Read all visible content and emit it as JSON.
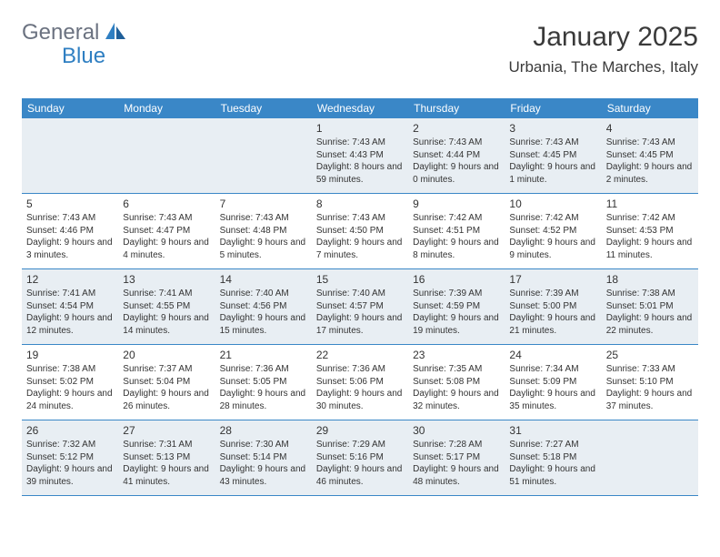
{
  "brand": {
    "name_part1": "General",
    "name_part2": "Blue",
    "text_color": "#6b7280",
    "accent_color": "#2f7fc2"
  },
  "header": {
    "title": "January 2025",
    "location": "Urbania, The Marches, Italy"
  },
  "calendar": {
    "header_bg": "#3a87c7",
    "header_fg": "#ffffff",
    "shade_bg": "#e8eef3",
    "border_color": "#3a87c7",
    "font_size_day": 12,
    "font_size_detail": 10,
    "day_names": [
      "Sunday",
      "Monday",
      "Tuesday",
      "Wednesday",
      "Thursday",
      "Friday",
      "Saturday"
    ],
    "weeks": [
      [
        {
          "day": "",
          "sunrise": "",
          "sunset": "",
          "daylight": ""
        },
        {
          "day": "",
          "sunrise": "",
          "sunset": "",
          "daylight": ""
        },
        {
          "day": "",
          "sunrise": "",
          "sunset": "",
          "daylight": ""
        },
        {
          "day": "1",
          "sunrise": "Sunrise: 7:43 AM",
          "sunset": "Sunset: 4:43 PM",
          "daylight": "Daylight: 8 hours and 59 minutes."
        },
        {
          "day": "2",
          "sunrise": "Sunrise: 7:43 AM",
          "sunset": "Sunset: 4:44 PM",
          "daylight": "Daylight: 9 hours and 0 minutes."
        },
        {
          "day": "3",
          "sunrise": "Sunrise: 7:43 AM",
          "sunset": "Sunset: 4:45 PM",
          "daylight": "Daylight: 9 hours and 1 minute."
        },
        {
          "day": "4",
          "sunrise": "Sunrise: 7:43 AM",
          "sunset": "Sunset: 4:45 PM",
          "daylight": "Daylight: 9 hours and 2 minutes."
        }
      ],
      [
        {
          "day": "5",
          "sunrise": "Sunrise: 7:43 AM",
          "sunset": "Sunset: 4:46 PM",
          "daylight": "Daylight: 9 hours and 3 minutes."
        },
        {
          "day": "6",
          "sunrise": "Sunrise: 7:43 AM",
          "sunset": "Sunset: 4:47 PM",
          "daylight": "Daylight: 9 hours and 4 minutes."
        },
        {
          "day": "7",
          "sunrise": "Sunrise: 7:43 AM",
          "sunset": "Sunset: 4:48 PM",
          "daylight": "Daylight: 9 hours and 5 minutes."
        },
        {
          "day": "8",
          "sunrise": "Sunrise: 7:43 AM",
          "sunset": "Sunset: 4:50 PM",
          "daylight": "Daylight: 9 hours and 7 minutes."
        },
        {
          "day": "9",
          "sunrise": "Sunrise: 7:42 AM",
          "sunset": "Sunset: 4:51 PM",
          "daylight": "Daylight: 9 hours and 8 minutes."
        },
        {
          "day": "10",
          "sunrise": "Sunrise: 7:42 AM",
          "sunset": "Sunset: 4:52 PM",
          "daylight": "Daylight: 9 hours and 9 minutes."
        },
        {
          "day": "11",
          "sunrise": "Sunrise: 7:42 AM",
          "sunset": "Sunset: 4:53 PM",
          "daylight": "Daylight: 9 hours and 11 minutes."
        }
      ],
      [
        {
          "day": "12",
          "sunrise": "Sunrise: 7:41 AM",
          "sunset": "Sunset: 4:54 PM",
          "daylight": "Daylight: 9 hours and 12 minutes."
        },
        {
          "day": "13",
          "sunrise": "Sunrise: 7:41 AM",
          "sunset": "Sunset: 4:55 PM",
          "daylight": "Daylight: 9 hours and 14 minutes."
        },
        {
          "day": "14",
          "sunrise": "Sunrise: 7:40 AM",
          "sunset": "Sunset: 4:56 PM",
          "daylight": "Daylight: 9 hours and 15 minutes."
        },
        {
          "day": "15",
          "sunrise": "Sunrise: 7:40 AM",
          "sunset": "Sunset: 4:57 PM",
          "daylight": "Daylight: 9 hours and 17 minutes."
        },
        {
          "day": "16",
          "sunrise": "Sunrise: 7:39 AM",
          "sunset": "Sunset: 4:59 PM",
          "daylight": "Daylight: 9 hours and 19 minutes."
        },
        {
          "day": "17",
          "sunrise": "Sunrise: 7:39 AM",
          "sunset": "Sunset: 5:00 PM",
          "daylight": "Daylight: 9 hours and 21 minutes."
        },
        {
          "day": "18",
          "sunrise": "Sunrise: 7:38 AM",
          "sunset": "Sunset: 5:01 PM",
          "daylight": "Daylight: 9 hours and 22 minutes."
        }
      ],
      [
        {
          "day": "19",
          "sunrise": "Sunrise: 7:38 AM",
          "sunset": "Sunset: 5:02 PM",
          "daylight": "Daylight: 9 hours and 24 minutes."
        },
        {
          "day": "20",
          "sunrise": "Sunrise: 7:37 AM",
          "sunset": "Sunset: 5:04 PM",
          "daylight": "Daylight: 9 hours and 26 minutes."
        },
        {
          "day": "21",
          "sunrise": "Sunrise: 7:36 AM",
          "sunset": "Sunset: 5:05 PM",
          "daylight": "Daylight: 9 hours and 28 minutes."
        },
        {
          "day": "22",
          "sunrise": "Sunrise: 7:36 AM",
          "sunset": "Sunset: 5:06 PM",
          "daylight": "Daylight: 9 hours and 30 minutes."
        },
        {
          "day": "23",
          "sunrise": "Sunrise: 7:35 AM",
          "sunset": "Sunset: 5:08 PM",
          "daylight": "Daylight: 9 hours and 32 minutes."
        },
        {
          "day": "24",
          "sunrise": "Sunrise: 7:34 AM",
          "sunset": "Sunset: 5:09 PM",
          "daylight": "Daylight: 9 hours and 35 minutes."
        },
        {
          "day": "25",
          "sunrise": "Sunrise: 7:33 AM",
          "sunset": "Sunset: 5:10 PM",
          "daylight": "Daylight: 9 hours and 37 minutes."
        }
      ],
      [
        {
          "day": "26",
          "sunrise": "Sunrise: 7:32 AM",
          "sunset": "Sunset: 5:12 PM",
          "daylight": "Daylight: 9 hours and 39 minutes."
        },
        {
          "day": "27",
          "sunrise": "Sunrise: 7:31 AM",
          "sunset": "Sunset: 5:13 PM",
          "daylight": "Daylight: 9 hours and 41 minutes."
        },
        {
          "day": "28",
          "sunrise": "Sunrise: 7:30 AM",
          "sunset": "Sunset: 5:14 PM",
          "daylight": "Daylight: 9 hours and 43 minutes."
        },
        {
          "day": "29",
          "sunrise": "Sunrise: 7:29 AM",
          "sunset": "Sunset: 5:16 PM",
          "daylight": "Daylight: 9 hours and 46 minutes."
        },
        {
          "day": "30",
          "sunrise": "Sunrise: 7:28 AM",
          "sunset": "Sunset: 5:17 PM",
          "daylight": "Daylight: 9 hours and 48 minutes."
        },
        {
          "day": "31",
          "sunrise": "Sunrise: 7:27 AM",
          "sunset": "Sunset: 5:18 PM",
          "daylight": "Daylight: 9 hours and 51 minutes."
        },
        {
          "day": "",
          "sunrise": "",
          "sunset": "",
          "daylight": ""
        }
      ]
    ]
  }
}
